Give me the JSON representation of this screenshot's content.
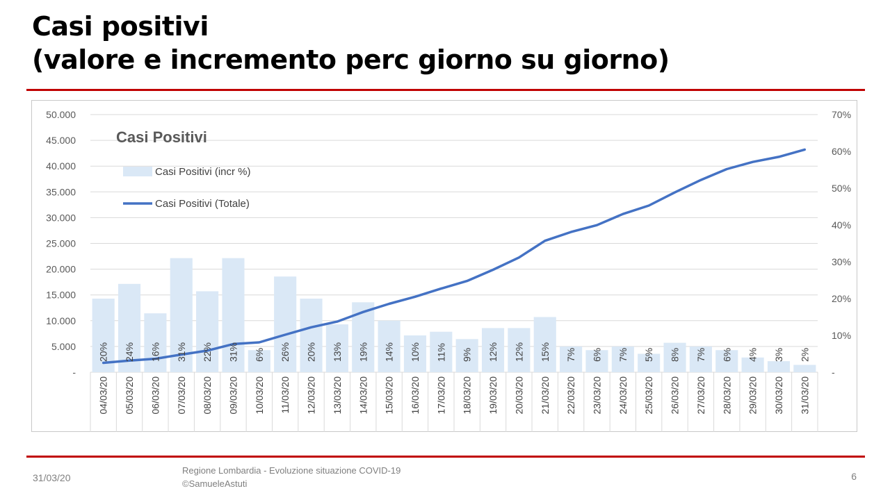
{
  "slide": {
    "title_line1": "Casi positivi",
    "title_line2": "(valore e incremento perc giorno su giorno)",
    "footer_date": "31/03/20",
    "footer_line1": "Regione Lombardia - Evoluzione situazione COVID-19",
    "footer_line2": "©SamueleAstuti",
    "page_number": "6"
  },
  "chart_data": {
    "type": "bar+line",
    "title": "Casi Positivi",
    "categories": [
      "04/03/20",
      "05/03/20",
      "06/03/20",
      "07/03/20",
      "08/03/20",
      "09/03/20",
      "10/03/20",
      "11/03/20",
      "12/03/20",
      "13/03/20",
      "14/03/20",
      "15/03/20",
      "16/03/20",
      "17/03/20",
      "18/03/20",
      "19/03/20",
      "20/03/20",
      "21/03/20",
      "22/03/20",
      "23/03/20",
      "24/03/20",
      "25/03/20",
      "26/03/20",
      "27/03/20",
      "28/03/20",
      "29/03/20",
      "30/03/20",
      "31/03/20"
    ],
    "series": [
      {
        "name": "Casi Positivi (incr %)",
        "type": "bar",
        "axis": "right",
        "color": "#dae8f6",
        "values": [
          20,
          24,
          16,
          31,
          22,
          31,
          6,
          26,
          20,
          13,
          19,
          14,
          10,
          11,
          9,
          12,
          12,
          15,
          7,
          6,
          7,
          5,
          8,
          7,
          6,
          4,
          3,
          2
        ],
        "labels": [
          "20%",
          "24%",
          "16%",
          "31%",
          "22%",
          "31%",
          "6%",
          "26%",
          "20%",
          "13%",
          "19%",
          "14%",
          "10%",
          "11%",
          "9%",
          "12%",
          "12%",
          "15%",
          "7%",
          "6%",
          "7%",
          "5%",
          "8%",
          "7%",
          "6%",
          "4%",
          "3%",
          "2%"
        ]
      },
      {
        "name": "Casi Positivi (Totale)",
        "type": "line",
        "axis": "left",
        "color": "#4472c4",
        "values": [
          1820,
          2251,
          2612,
          3420,
          4189,
          5469,
          5791,
          7280,
          8725,
          9820,
          11685,
          13272,
          14649,
          16220,
          17713,
          19884,
          22264,
          25515,
          27206,
          28545,
          30703,
          32346,
          34889,
          37298,
          39415,
          40814,
          41791,
          43208
        ]
      }
    ],
    "y_left": {
      "min": 0,
      "max": 50000,
      "step": 5000,
      "ticks": [
        "-",
        "5.000",
        "10.000",
        "15.000",
        "20.000",
        "25.000",
        "30.000",
        "35.000",
        "40.000",
        "45.000",
        "50.000"
      ]
    },
    "y_right": {
      "min": 0,
      "max": 70,
      "step": 10,
      "ticks": [
        "-",
        "10%",
        "20%",
        "30%",
        "40%",
        "50%",
        "60%",
        "70%"
      ]
    },
    "grid": true,
    "legend_position": "top-left"
  }
}
